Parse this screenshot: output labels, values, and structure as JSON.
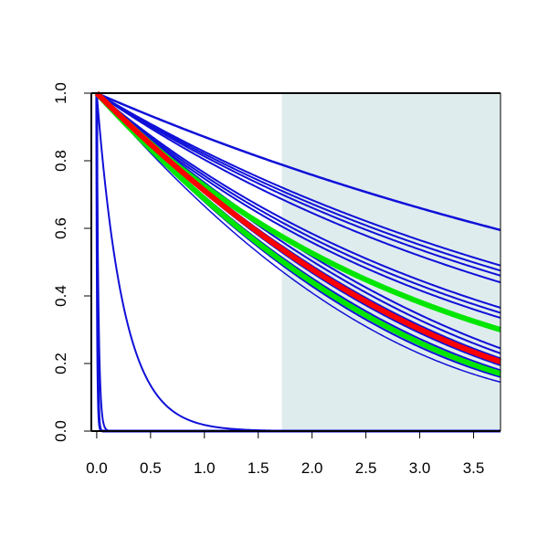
{
  "chart_data": {
    "type": "line",
    "title": "",
    "xlabel": "",
    "ylabel": "",
    "xlim": [
      -0.05,
      3.75
    ],
    "ylim": [
      0.0,
      1.0
    ],
    "grid": false,
    "x_ticks": [
      {
        "value": 0.0,
        "label": "0.0"
      },
      {
        "value": 0.5,
        "label": "0.5"
      },
      {
        "value": 1.0,
        "label": "1.0"
      },
      {
        "value": 1.5,
        "label": "1.5"
      },
      {
        "value": 2.0,
        "label": "2.0"
      },
      {
        "value": 2.5,
        "label": "2.5"
      },
      {
        "value": 3.0,
        "label": "3.0"
      },
      {
        "value": 3.5,
        "label": "3.5"
      }
    ],
    "y_ticks": [
      {
        "value": 0.0,
        "label": "0.0"
      },
      {
        "value": 0.2,
        "label": "0.2"
      },
      {
        "value": 0.4,
        "label": "0.4"
      },
      {
        "value": 0.6,
        "label": "0.6"
      },
      {
        "value": 0.8,
        "label": "0.8"
      },
      {
        "value": 1.0,
        "label": "1.0"
      }
    ],
    "shaded_region": {
      "x_start": 1.72,
      "x_end": 3.75,
      "color": "#dfeced"
    },
    "colors": {
      "blue": "#1010d8",
      "red": "#ff0000",
      "green": "#00e600",
      "axis": "#000000"
    },
    "series": [
      {
        "color": "blue",
        "curve": "exp",
        "end_value": 0.595,
        "width": 2.5
      },
      {
        "color": "blue",
        "curve": "exp",
        "end_value": 0.49,
        "width": 2
      },
      {
        "color": "blue",
        "curve": "exp",
        "end_value": 0.475,
        "width": 2
      },
      {
        "color": "blue",
        "curve": "exp",
        "end_value": 0.46,
        "width": 2
      },
      {
        "color": "blue",
        "curve": "exp",
        "end_value": 0.44,
        "width": 2
      },
      {
        "color": "blue",
        "curve": "exp",
        "end_value": 0.365,
        "width": 2
      },
      {
        "color": "blue",
        "curve": "exp",
        "end_value": 0.35,
        "width": 2
      },
      {
        "color": "blue",
        "curve": "exp",
        "end_value": 0.335,
        "width": 2
      },
      {
        "color": "blue",
        "curve": "poly",
        "end_value": 0.245,
        "width": 2
      },
      {
        "color": "blue",
        "curve": "poly",
        "end_value": 0.23,
        "width": 2
      },
      {
        "color": "blue",
        "curve": "poly",
        "end_value": 0.215,
        "width": 2
      },
      {
        "color": "blue",
        "curve": "poly",
        "end_value": 0.195,
        "width": 2
      },
      {
        "color": "blue",
        "curve": "poly",
        "end_value": 0.18,
        "width": 2
      },
      {
        "color": "blue",
        "curve": "poly",
        "end_value": 0.16,
        "width": 2
      },
      {
        "color": "blue",
        "curve": "poly",
        "end_value": 0.145,
        "width": 1.5
      },
      {
        "color": "blue",
        "curve": "rate",
        "rate": 4.0,
        "width": 2
      },
      {
        "color": "blue",
        "curve": "rate",
        "rate": 150,
        "width": 3
      },
      {
        "color": "blue",
        "curve": "rate",
        "rate": 60,
        "width": 2
      },
      {
        "color": "green",
        "curve": "exp",
        "end_value": 0.3,
        "width": 6
      },
      {
        "color": "green",
        "curve": "poly",
        "end_value": 0.17,
        "width": 6
      },
      {
        "color": "red",
        "curve": "poly",
        "end_value": 0.205,
        "width": 6
      }
    ]
  }
}
